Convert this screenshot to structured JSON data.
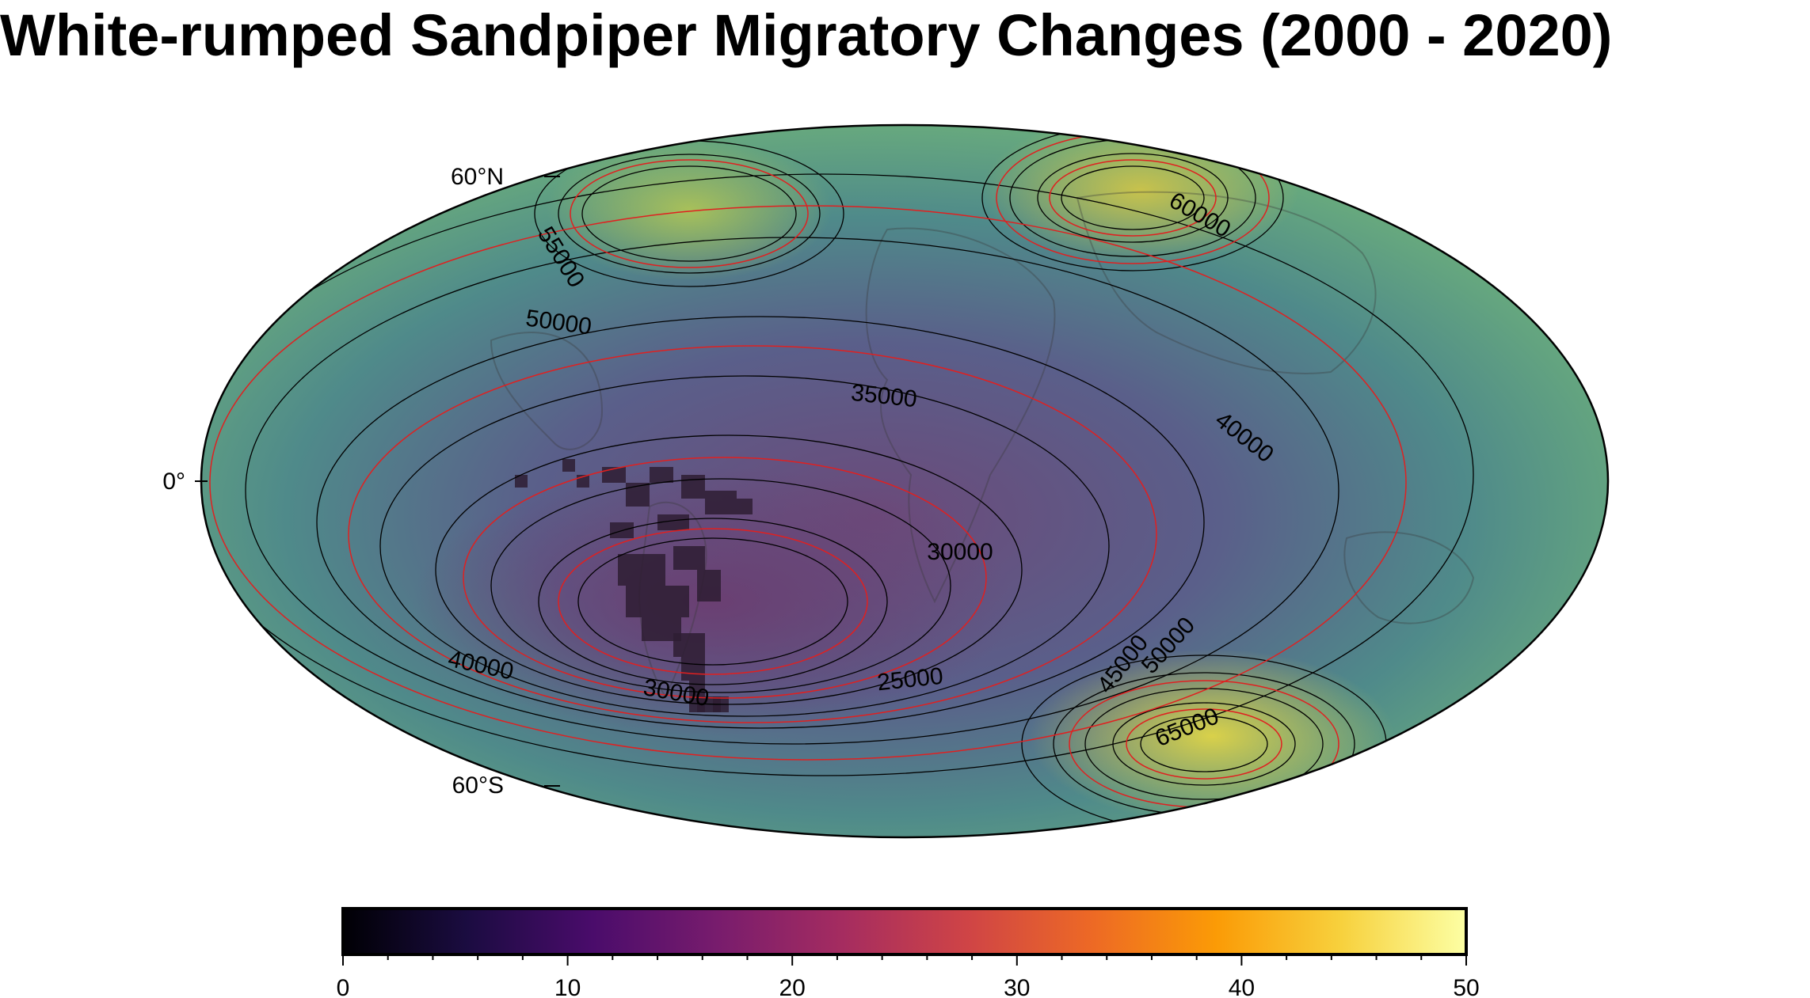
{
  "title": "White-rumped Sandpiper Migratory Changes (2000 - 2020)",
  "map": {
    "projection": "hammer",
    "lat_labels": [
      "60°N",
      "0°",
      "60°S"
    ],
    "contour_labels": [
      "55000",
      "50000",
      "60000",
      "35000",
      "40000",
      "30000",
      "25000",
      "45000",
      "50000",
      "65000",
      "40000",
      "30000"
    ],
    "land_color": "#2a2a2a",
    "ocean_overlay": "gradient"
  },
  "colorbar": {
    "colormap": "inferno",
    "min": 0,
    "max": 50,
    "tick_labels": [
      "0",
      "10",
      "20",
      "30",
      "40",
      "50"
    ],
    "colors": [
      "#000004",
      "#1b0c41",
      "#4a0c6b",
      "#781c6d",
      "#a52c60",
      "#cf4446",
      "#ed6925",
      "#fb9b06",
      "#f7d13d",
      "#fcffa4"
    ]
  }
}
